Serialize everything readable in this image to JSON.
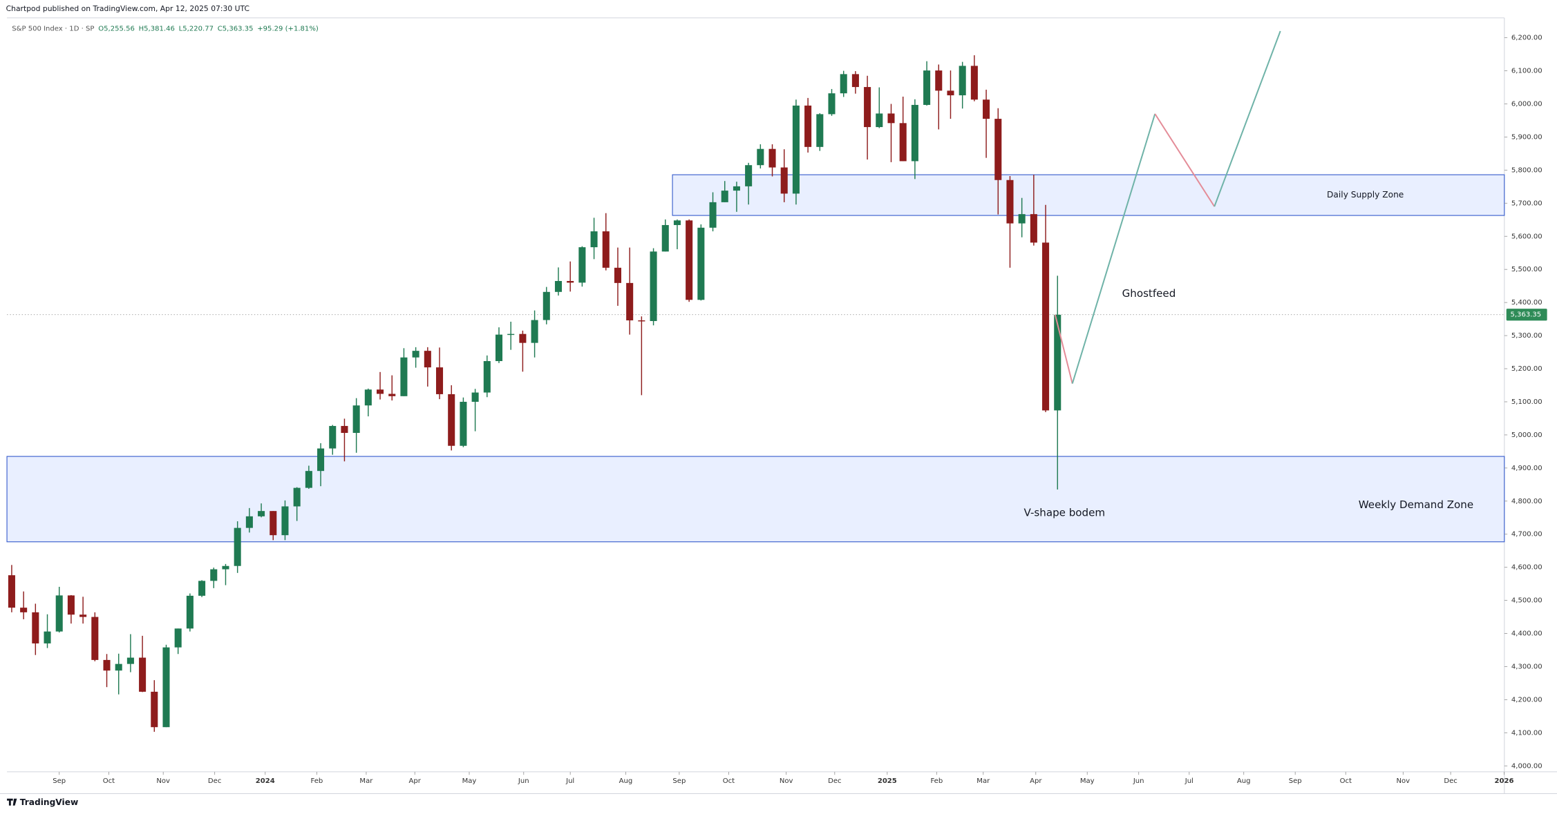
{
  "chart_data": {
    "type": "candlestick",
    "attribution": "Chartpod published on TradingView.com, Apr 12, 2025 07:30 UTC",
    "symbol": "S&P 500 Index · 1D · SP",
    "ohlc_text": [
      "O5,255.56",
      "H5,381.46",
      "L5,220.77",
      "C5,363.35",
      "+95.29 (+1.81%)"
    ],
    "brand": "TradingView",
    "up_color": "#1f7a52",
    "down_color": "#8e1c1c",
    "xlim": [
      -0.4,
      125.6
    ],
    "ylim": [
      3982,
      6260
    ],
    "xticks": [
      {
        "value": 4,
        "label": "Sep"
      },
      {
        "value": 8.17,
        "label": "Oct"
      },
      {
        "value": 12.75,
        "label": "Nov"
      },
      {
        "value": 17.08,
        "label": "Dec"
      },
      {
        "value": 21.33,
        "label": "2024"
      },
      {
        "value": 25.67,
        "label": "Feb"
      },
      {
        "value": 29.83,
        "label": "Mar"
      },
      {
        "value": 33.92,
        "label": "Apr"
      },
      {
        "value": 38.5,
        "label": "May"
      },
      {
        "value": 43.08,
        "label": "Jun"
      },
      {
        "value": 47,
        "label": "Jul"
      },
      {
        "value": 51.67,
        "label": "Aug"
      },
      {
        "value": 56.17,
        "label": "Sep"
      },
      {
        "value": 60.33,
        "label": "Oct"
      },
      {
        "value": 65.17,
        "label": "Nov"
      },
      {
        "value": 69.25,
        "label": "Dec"
      },
      {
        "value": 73.67,
        "label": "2025"
      },
      {
        "value": 77.83,
        "label": "Feb"
      },
      {
        "value": 81.75,
        "label": "Mar"
      },
      {
        "value": 86.17,
        "label": "Apr"
      },
      {
        "value": 90.5,
        "label": "May"
      },
      {
        "value": 94.83,
        "label": "Jun"
      },
      {
        "value": 99.08,
        "label": "Jul"
      },
      {
        "value": 103.67,
        "label": "Aug"
      },
      {
        "value": 108,
        "label": "Sep"
      },
      {
        "value": 112.25,
        "label": "Oct"
      },
      {
        "value": 117.08,
        "label": "Nov"
      },
      {
        "value": 121.08,
        "label": "Dec"
      },
      {
        "value": 125.58,
        "label": "2026"
      }
    ],
    "yticks": [
      {
        "value": 4000,
        "label": "4,000.00"
      },
      {
        "value": 4100,
        "label": "4,100.00"
      },
      {
        "value": 4200,
        "label": "4,200.00"
      },
      {
        "value": 4300,
        "label": "4,300.00"
      },
      {
        "value": 4400,
        "label": "4,400.00"
      },
      {
        "value": 4500,
        "label": "4,500.00"
      },
      {
        "value": 4600,
        "label": "4,600.00"
      },
      {
        "value": 4700,
        "label": "4,700.00"
      },
      {
        "value": 4800,
        "label": "4,800.00"
      },
      {
        "value": 4900,
        "label": "4,900.00"
      },
      {
        "value": 5000,
        "label": "5,000.00"
      },
      {
        "value": 5100,
        "label": "5,100.00"
      },
      {
        "value": 5200,
        "label": "5,200.00"
      },
      {
        "value": 5300,
        "label": "5,300.00"
      },
      {
        "value": 5400,
        "label": "5,400.00"
      },
      {
        "value": 5500,
        "label": "5,500.00"
      },
      {
        "value": 5600,
        "label": "5,600.00"
      },
      {
        "value": 5700,
        "label": "5,700.00"
      },
      {
        "value": 5800,
        "label": "5,800.00"
      },
      {
        "value": 5900,
        "label": "5,900.00"
      },
      {
        "value": 6000,
        "label": "6,000.00"
      },
      {
        "value": 6100,
        "label": "6,100.00"
      },
      {
        "value": 6200,
        "label": "6,200.00"
      }
    ],
    "last_price": {
      "value": 5363.35,
      "label": "5,363.35"
    },
    "candles": [
      [
        4576,
        4607,
        4464,
        4478
      ],
      [
        4478,
        4527,
        4443,
        4464
      ],
      [
        4464,
        4490,
        4335,
        4370
      ],
      [
        4370,
        4458,
        4356,
        4406
      ],
      [
        4406,
        4541,
        4403,
        4515
      ],
      [
        4515,
        4516,
        4430,
        4457
      ],
      [
        4457,
        4511,
        4430,
        4450
      ],
      [
        4450,
        4464,
        4316,
        4320
      ],
      [
        4320,
        4338,
        4238,
        4288
      ],
      [
        4288,
        4339,
        4216,
        4308
      ],
      [
        4308,
        4398,
        4283,
        4327
      ],
      [
        4327,
        4393,
        4223,
        4224
      ],
      [
        4224,
        4259,
        4103,
        4117
      ],
      [
        4117,
        4366,
        4117,
        4358
      ],
      [
        4358,
        4415,
        4338,
        4415
      ],
      [
        4415,
        4521,
        4406,
        4514
      ],
      [
        4514,
        4561,
        4510,
        4559
      ],
      [
        4559,
        4599,
        4537,
        4594
      ],
      [
        4594,
        4610,
        4546,
        4604
      ],
      [
        4604,
        4739,
        4583,
        4719
      ],
      [
        4719,
        4779,
        4705,
        4754
      ],
      [
        4754,
        4793,
        4751,
        4770
      ],
      [
        4770,
        4770,
        4682,
        4697
      ],
      [
        4697,
        4802,
        4682,
        4784
      ],
      [
        4784,
        4842,
        4740,
        4840
      ],
      [
        4840,
        4907,
        4837,
        4891
      ],
      [
        4891,
        4975,
        4845,
        4959
      ],
      [
        4959,
        5030,
        4940,
        5027
      ],
      [
        5027,
        5049,
        4920,
        5006
      ],
      [
        5006,
        5111,
        4946,
        5089
      ],
      [
        5089,
        5140,
        5056,
        5137
      ],
      [
        5137,
        5190,
        5107,
        5124
      ],
      [
        5124,
        5180,
        5104,
        5117
      ],
      [
        5117,
        5262,
        5117,
        5234
      ],
      [
        5234,
        5265,
        5203,
        5254
      ],
      [
        5254,
        5265,
        5146,
        5204
      ],
      [
        5204,
        5264,
        5108,
        5123
      ],
      [
        5123,
        5150,
        4953,
        4967
      ],
      [
        4967,
        5113,
        4963,
        5100
      ],
      [
        5100,
        5139,
        5011,
        5128
      ],
      [
        5128,
        5240,
        5114,
        5223
      ],
      [
        5223,
        5325,
        5217,
        5303
      ],
      [
        5303,
        5342,
        5257,
        5305
      ],
      [
        5305,
        5315,
        5191,
        5278
      ],
      [
        5278,
        5376,
        5234,
        5347
      ],
      [
        5347,
        5447,
        5334,
        5432
      ],
      [
        5432,
        5506,
        5421,
        5465
      ],
      [
        5465,
        5524,
        5433,
        5460
      ],
      [
        5460,
        5570,
        5448,
        5567
      ],
      [
        5567,
        5656,
        5531,
        5615
      ],
      [
        5615,
        5670,
        5497,
        5505
      ],
      [
        5505,
        5566,
        5390,
        5459
      ],
      [
        5459,
        5566,
        5303,
        5346
      ],
      [
        5346,
        5358,
        5120,
        5344
      ],
      [
        5344,
        5564,
        5331,
        5554
      ],
      [
        5554,
        5651,
        5554,
        5634
      ],
      [
        5634,
        5651,
        5561,
        5648
      ],
      [
        5648,
        5651,
        5402,
        5408
      ],
      [
        5408,
        5636,
        5406,
        5626
      ],
      [
        5626,
        5733,
        5615,
        5703
      ],
      [
        5703,
        5767,
        5703,
        5738
      ],
      [
        5738,
        5765,
        5674,
        5751
      ],
      [
        5751,
        5822,
        5696,
        5815
      ],
      [
        5815,
        5878,
        5805,
        5864
      ],
      [
        5864,
        5878,
        5781,
        5808
      ],
      [
        5808,
        5863,
        5703,
        5729
      ],
      [
        5729,
        6013,
        5696,
        5995
      ],
      [
        5995,
        6018,
        5853,
        5870
      ],
      [
        5870,
        5972,
        5858,
        5969
      ],
      [
        5969,
        6045,
        5964,
        6032
      ],
      [
        6032,
        6100,
        6021,
        6090
      ],
      [
        6090,
        6099,
        6031,
        6051
      ],
      [
        6051,
        6085,
        5832,
        5930
      ],
      [
        5930,
        6050,
        5927,
        5971
      ],
      [
        5971,
        6000,
        5824,
        5942
      ],
      [
        5942,
        6022,
        5827,
        5827
      ],
      [
        5827,
        6014,
        5773,
        5997
      ],
      [
        5997,
        6129,
        5995,
        6101
      ],
      [
        6101,
        6119,
        5923,
        6040
      ],
      [
        6040,
        6101,
        5955,
        6026
      ],
      [
        6026,
        6127,
        5986,
        6115
      ],
      [
        6115,
        6147,
        6008,
        6013
      ],
      [
        6013,
        6043,
        5837,
        5955
      ],
      [
        5955,
        5987,
        5666,
        5770
      ],
      [
        5770,
        5782,
        5505,
        5639
      ],
      [
        5639,
        5716,
        5597,
        5667
      ],
      [
        5667,
        5786,
        5572,
        5581
      ],
      [
        5581,
        5695,
        5069,
        5074
      ],
      [
        5074,
        5481,
        4835,
        5363
      ]
    ],
    "projection": {
      "x": [
        87.8,
        89.25,
        96.2,
        101.2,
        106.75
      ],
      "values": [
        5363,
        5155,
        5970,
        5690,
        6220
      ],
      "up_color": "#6fb3a8",
      "down_color": "#e48c98"
    },
    "zones": [
      {
        "label": "Daily Supply Zone",
        "from_x": 55.6,
        "low": 5663,
        "high": 5786
      },
      {
        "label": "Weekly Demand Zone",
        "from_x": -0.4,
        "low": 4677,
        "high": 4935
      }
    ],
    "annotations": [
      "Ghostfeed",
      "V-shape bodem"
    ]
  }
}
